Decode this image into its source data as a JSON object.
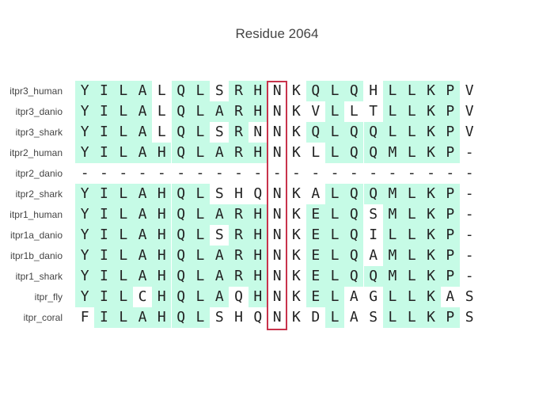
{
  "title": "Residue 2064",
  "highlight_color": "#c6fbe6",
  "box_color": "#c8334b",
  "highlighted_column_index": 10,
  "rows": [
    {
      "label": "itpr3_human",
      "residues": [
        "Y",
        "I",
        "L",
        "A",
        "L",
        "Q",
        "L",
        "S",
        "R",
        "H",
        "N",
        "K",
        "Q",
        "L",
        "Q",
        "H",
        "L",
        "L",
        "K",
        "P",
        "V"
      ],
      "highlighted": [
        1,
        1,
        1,
        1,
        0,
        1,
        1,
        0,
        1,
        1,
        0,
        0,
        1,
        1,
        1,
        0,
        1,
        1,
        1,
        1,
        0
      ]
    },
    {
      "label": "itpr3_danio",
      "residues": [
        "Y",
        "I",
        "L",
        "A",
        "L",
        "Q",
        "L",
        "A",
        "R",
        "H",
        "N",
        "K",
        "V",
        "L",
        "L",
        "T",
        "L",
        "L",
        "K",
        "P",
        "V"
      ],
      "highlighted": [
        1,
        1,
        1,
        1,
        0,
        1,
        1,
        1,
        1,
        1,
        0,
        0,
        0,
        1,
        0,
        0,
        1,
        1,
        1,
        1,
        0
      ]
    },
    {
      "label": "itpr3_shark",
      "residues": [
        "Y",
        "I",
        "L",
        "A",
        "L",
        "Q",
        "L",
        "S",
        "R",
        "N",
        "N",
        "K",
        "Q",
        "L",
        "Q",
        "Q",
        "L",
        "L",
        "K",
        "P",
        "V"
      ],
      "highlighted": [
        1,
        1,
        1,
        1,
        0,
        1,
        1,
        0,
        1,
        0,
        0,
        0,
        1,
        1,
        1,
        1,
        1,
        1,
        1,
        1,
        0
      ]
    },
    {
      "label": "itpr2_human",
      "residues": [
        "Y",
        "I",
        "L",
        "A",
        "H",
        "Q",
        "L",
        "A",
        "R",
        "H",
        "N",
        "K",
        "L",
        "L",
        "Q",
        "Q",
        "M",
        "L",
        "K",
        "P",
        "-"
      ],
      "highlighted": [
        1,
        1,
        1,
        1,
        1,
        1,
        1,
        1,
        1,
        1,
        0,
        0,
        0,
        1,
        1,
        1,
        1,
        1,
        1,
        1,
        0
      ]
    },
    {
      "label": "itpr2_danio",
      "residues": [
        "-",
        "-",
        "-",
        "-",
        "-",
        "-",
        "-",
        "-",
        "-",
        "-",
        "-",
        "-",
        "-",
        "-",
        "-",
        "-",
        "-",
        "-",
        "-",
        "-",
        "-"
      ],
      "highlighted": [
        0,
        0,
        0,
        0,
        0,
        0,
        0,
        0,
        0,
        0,
        0,
        0,
        0,
        0,
        0,
        0,
        0,
        0,
        0,
        0,
        0
      ]
    },
    {
      "label": "itpr2_shark",
      "residues": [
        "Y",
        "I",
        "L",
        "A",
        "H",
        "Q",
        "L",
        "S",
        "H",
        "Q",
        "N",
        "K",
        "A",
        "L",
        "Q",
        "Q",
        "M",
        "L",
        "K",
        "P",
        "-"
      ],
      "highlighted": [
        1,
        1,
        1,
        1,
        1,
        1,
        1,
        0,
        0,
        0,
        0,
        0,
        0,
        1,
        1,
        1,
        1,
        1,
        1,
        1,
        0
      ]
    },
    {
      "label": "itpr1_human",
      "residues": [
        "Y",
        "I",
        "L",
        "A",
        "H",
        "Q",
        "L",
        "A",
        "R",
        "H",
        "N",
        "K",
        "E",
        "L",
        "Q",
        "S",
        "M",
        "L",
        "K",
        "P",
        "-"
      ],
      "highlighted": [
        1,
        1,
        1,
        1,
        1,
        1,
        1,
        1,
        1,
        1,
        0,
        0,
        1,
        1,
        1,
        0,
        1,
        1,
        1,
        1,
        0
      ]
    },
    {
      "label": "itpr1a_danio",
      "residues": [
        "Y",
        "I",
        "L",
        "A",
        "H",
        "Q",
        "L",
        "S",
        "R",
        "H",
        "N",
        "K",
        "E",
        "L",
        "Q",
        "I",
        "L",
        "L",
        "K",
        "P",
        "-"
      ],
      "highlighted": [
        1,
        1,
        1,
        1,
        1,
        1,
        1,
        0,
        1,
        1,
        0,
        0,
        1,
        1,
        1,
        0,
        1,
        1,
        1,
        1,
        0
      ]
    },
    {
      "label": "itpr1b_danio",
      "residues": [
        "Y",
        "I",
        "L",
        "A",
        "H",
        "Q",
        "L",
        "A",
        "R",
        "H",
        "N",
        "K",
        "E",
        "L",
        "Q",
        "A",
        "M",
        "L",
        "K",
        "P",
        "-"
      ],
      "highlighted": [
        1,
        1,
        1,
        1,
        1,
        1,
        1,
        1,
        1,
        1,
        0,
        0,
        1,
        1,
        1,
        0,
        1,
        1,
        1,
        1,
        0
      ]
    },
    {
      "label": "itpr1_shark",
      "residues": [
        "Y",
        "I",
        "L",
        "A",
        "H",
        "Q",
        "L",
        "A",
        "R",
        "H",
        "N",
        "K",
        "E",
        "L",
        "Q",
        "Q",
        "M",
        "L",
        "K",
        "P",
        "-"
      ],
      "highlighted": [
        1,
        1,
        1,
        1,
        1,
        1,
        1,
        1,
        1,
        1,
        0,
        0,
        1,
        1,
        1,
        1,
        1,
        1,
        1,
        1,
        0
      ]
    },
    {
      "label": "itpr_fly",
      "residues": [
        "Y",
        "I",
        "L",
        "C",
        "H",
        "Q",
        "L",
        "A",
        "Q",
        "H",
        "N",
        "K",
        "E",
        "L",
        "A",
        "G",
        "L",
        "L",
        "K",
        "A",
        "S"
      ],
      "highlighted": [
        1,
        1,
        1,
        0,
        1,
        1,
        1,
        1,
        0,
        1,
        0,
        0,
        1,
        1,
        0,
        0,
        1,
        1,
        1,
        0,
        0
      ]
    },
    {
      "label": "itpr_coral",
      "residues": [
        "F",
        "I",
        "L",
        "A",
        "H",
        "Q",
        "L",
        "S",
        "H",
        "Q",
        "N",
        "K",
        "D",
        "L",
        "A",
        "S",
        "L",
        "L",
        "K",
        "P",
        "S"
      ],
      "highlighted": [
        0,
        1,
        1,
        1,
        1,
        1,
        1,
        0,
        0,
        0,
        0,
        0,
        0,
        1,
        0,
        0,
        1,
        1,
        1,
        1,
        0
      ]
    }
  ]
}
